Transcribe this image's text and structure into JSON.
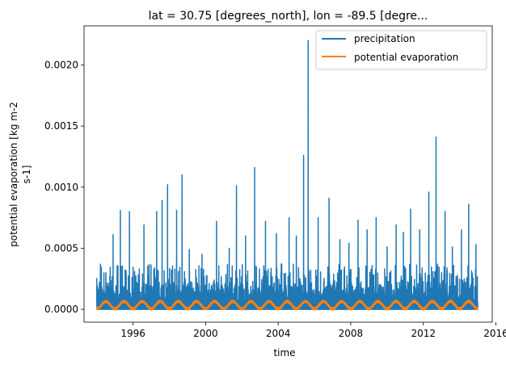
{
  "chart_data": {
    "type": "line",
    "title": "lat = 30.75 [degrees_north], lon = -89.5 [degre...",
    "xlabel": "time",
    "ylabel": [
      "potential evaporation [kg m-2",
      "s-1]"
    ],
    "xlim": [
      1993.3,
      2015.8
    ],
    "ylim": [
      -0.000105,
      0.00232
    ],
    "x_ticks": [
      1996,
      2000,
      2004,
      2008,
      2012,
      2016
    ],
    "x_tick_labels": [
      "1996",
      "2000",
      "2004",
      "2008",
      "2012",
      "2016"
    ],
    "y_ticks": [
      0.0,
      0.0005,
      0.001,
      0.0015,
      0.002
    ],
    "y_tick_labels": [
      "0.0000",
      "0.0005",
      "0.0010",
      "0.0015",
      "0.0020"
    ],
    "grid": false,
    "legend_position": "top-right",
    "series": [
      {
        "name": "precipitation",
        "color": "#1f77b4",
        "x_range": [
          1994.0,
          2015.0
        ],
        "baseline_range": [
          0.0,
          0.00024
        ],
        "spikes": [
          [
            1994.2,
            0.00037
          ],
          [
            1994.9,
            0.00061
          ],
          [
            1995.3,
            0.00081
          ],
          [
            1995.8,
            0.0008
          ],
          [
            1996.6,
            0.00069
          ],
          [
            1997.3,
            0.0008
          ],
          [
            1997.6,
            0.00089
          ],
          [
            1997.9,
            0.00102
          ],
          [
            1998.4,
            0.00081
          ],
          [
            1998.7,
            0.0011
          ],
          [
            1999.1,
            0.00049
          ],
          [
            1999.8,
            0.00045
          ],
          [
            2000.6,
            0.00072
          ],
          [
            2001.3,
            0.0005
          ],
          [
            2001.7,
            0.00101
          ],
          [
            2002.2,
            0.0006
          ],
          [
            2002.7,
            0.00116
          ],
          [
            2003.3,
            0.00072
          ],
          [
            2003.9,
            0.00062
          ],
          [
            2004.6,
            0.00075
          ],
          [
            2005.0,
            0.0006
          ],
          [
            2005.4,
            0.00126
          ],
          [
            2005.65,
            0.0022
          ],
          [
            2006.2,
            0.00075
          ],
          [
            2006.8,
            0.00091
          ],
          [
            2007.4,
            0.00057
          ],
          [
            2007.9,
            0.00054
          ],
          [
            2008.4,
            0.00073
          ],
          [
            2008.9,
            0.00065
          ],
          [
            2009.4,
            0.00075
          ],
          [
            2010.0,
            0.00051
          ],
          [
            2010.5,
            0.00069
          ],
          [
            2010.9,
            0.00063
          ],
          [
            2011.3,
            0.00082
          ],
          [
            2011.8,
            0.00065
          ],
          [
            2012.3,
            0.00096
          ],
          [
            2012.7,
            0.00141
          ],
          [
            2013.2,
            0.0008
          ],
          [
            2013.6,
            0.00051
          ],
          [
            2014.1,
            0.00065
          ],
          [
            2014.5,
            0.00086
          ],
          [
            2014.9,
            0.00053
          ]
        ]
      },
      {
        "name": "potential evaporation",
        "color": "#ff7f0e",
        "x_range": [
          1994.0,
          2015.0
        ],
        "seasonal_min": 5e-06,
        "seasonal_max": 6.5e-05,
        "period_years": 1
      }
    ]
  }
}
